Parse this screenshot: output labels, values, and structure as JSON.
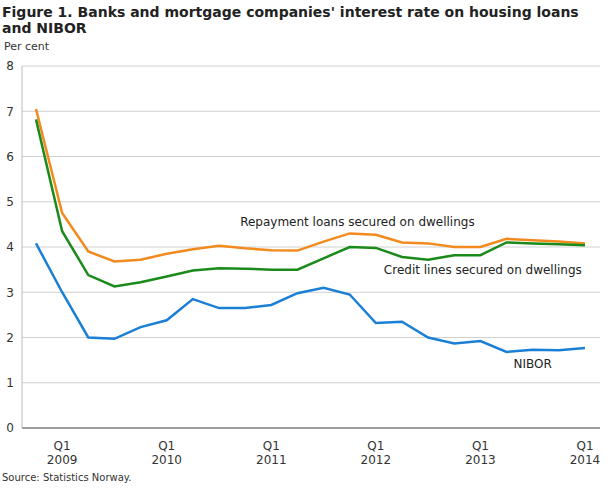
{
  "chart_data": {
    "type": "line",
    "title": "Figure 1. Banks and mortgage companies' interest rate on housing loans and NIBOR",
    "y_label": "Per cent",
    "source": "Source: Statistics Norway.",
    "categories": [
      null,
      "Q1 2009",
      null,
      null,
      null,
      "Q1 2010",
      null,
      null,
      null,
      "Q1 2011",
      null,
      null,
      null,
      "Q1 2012",
      null,
      null,
      null,
      "Q1 2013",
      null,
      null,
      null,
      "Q1 2014"
    ],
    "series": [
      {
        "name": "Repayment loans secured on dwellings",
        "color": "#f28a1e",
        "values": [
          7.05,
          4.75,
          3.9,
          3.68,
          3.72,
          3.85,
          3.95,
          4.03,
          3.97,
          3.93,
          3.92,
          4.12,
          4.3,
          4.27,
          4.1,
          4.08,
          4.0,
          4.0,
          4.18,
          4.15,
          4.12,
          4.08
        ]
      },
      {
        "name": "Credit lines secured on dwellings",
        "color": "#1a8a1a",
        "values": [
          6.82,
          4.35,
          3.38,
          3.13,
          3.22,
          3.35,
          3.48,
          3.53,
          3.52,
          3.5,
          3.5,
          3.75,
          4.0,
          3.98,
          3.78,
          3.72,
          3.82,
          3.82,
          4.1,
          4.08,
          4.06,
          4.04
        ]
      },
      {
        "name": "NIBOR",
        "color": "#1b7fd6",
        "values": [
          4.08,
          3.0,
          2.0,
          1.97,
          2.23,
          2.38,
          2.85,
          2.65,
          2.65,
          2.72,
          2.98,
          3.1,
          2.95,
          2.32,
          2.35,
          2.0,
          1.87,
          1.92,
          1.68,
          1.73,
          1.72,
          1.77
        ]
      }
    ],
    "ylim": [
      0,
      8
    ],
    "yticks": [
      0,
      1,
      2,
      3,
      4,
      5,
      6,
      7,
      8
    ],
    "grid": true
  }
}
